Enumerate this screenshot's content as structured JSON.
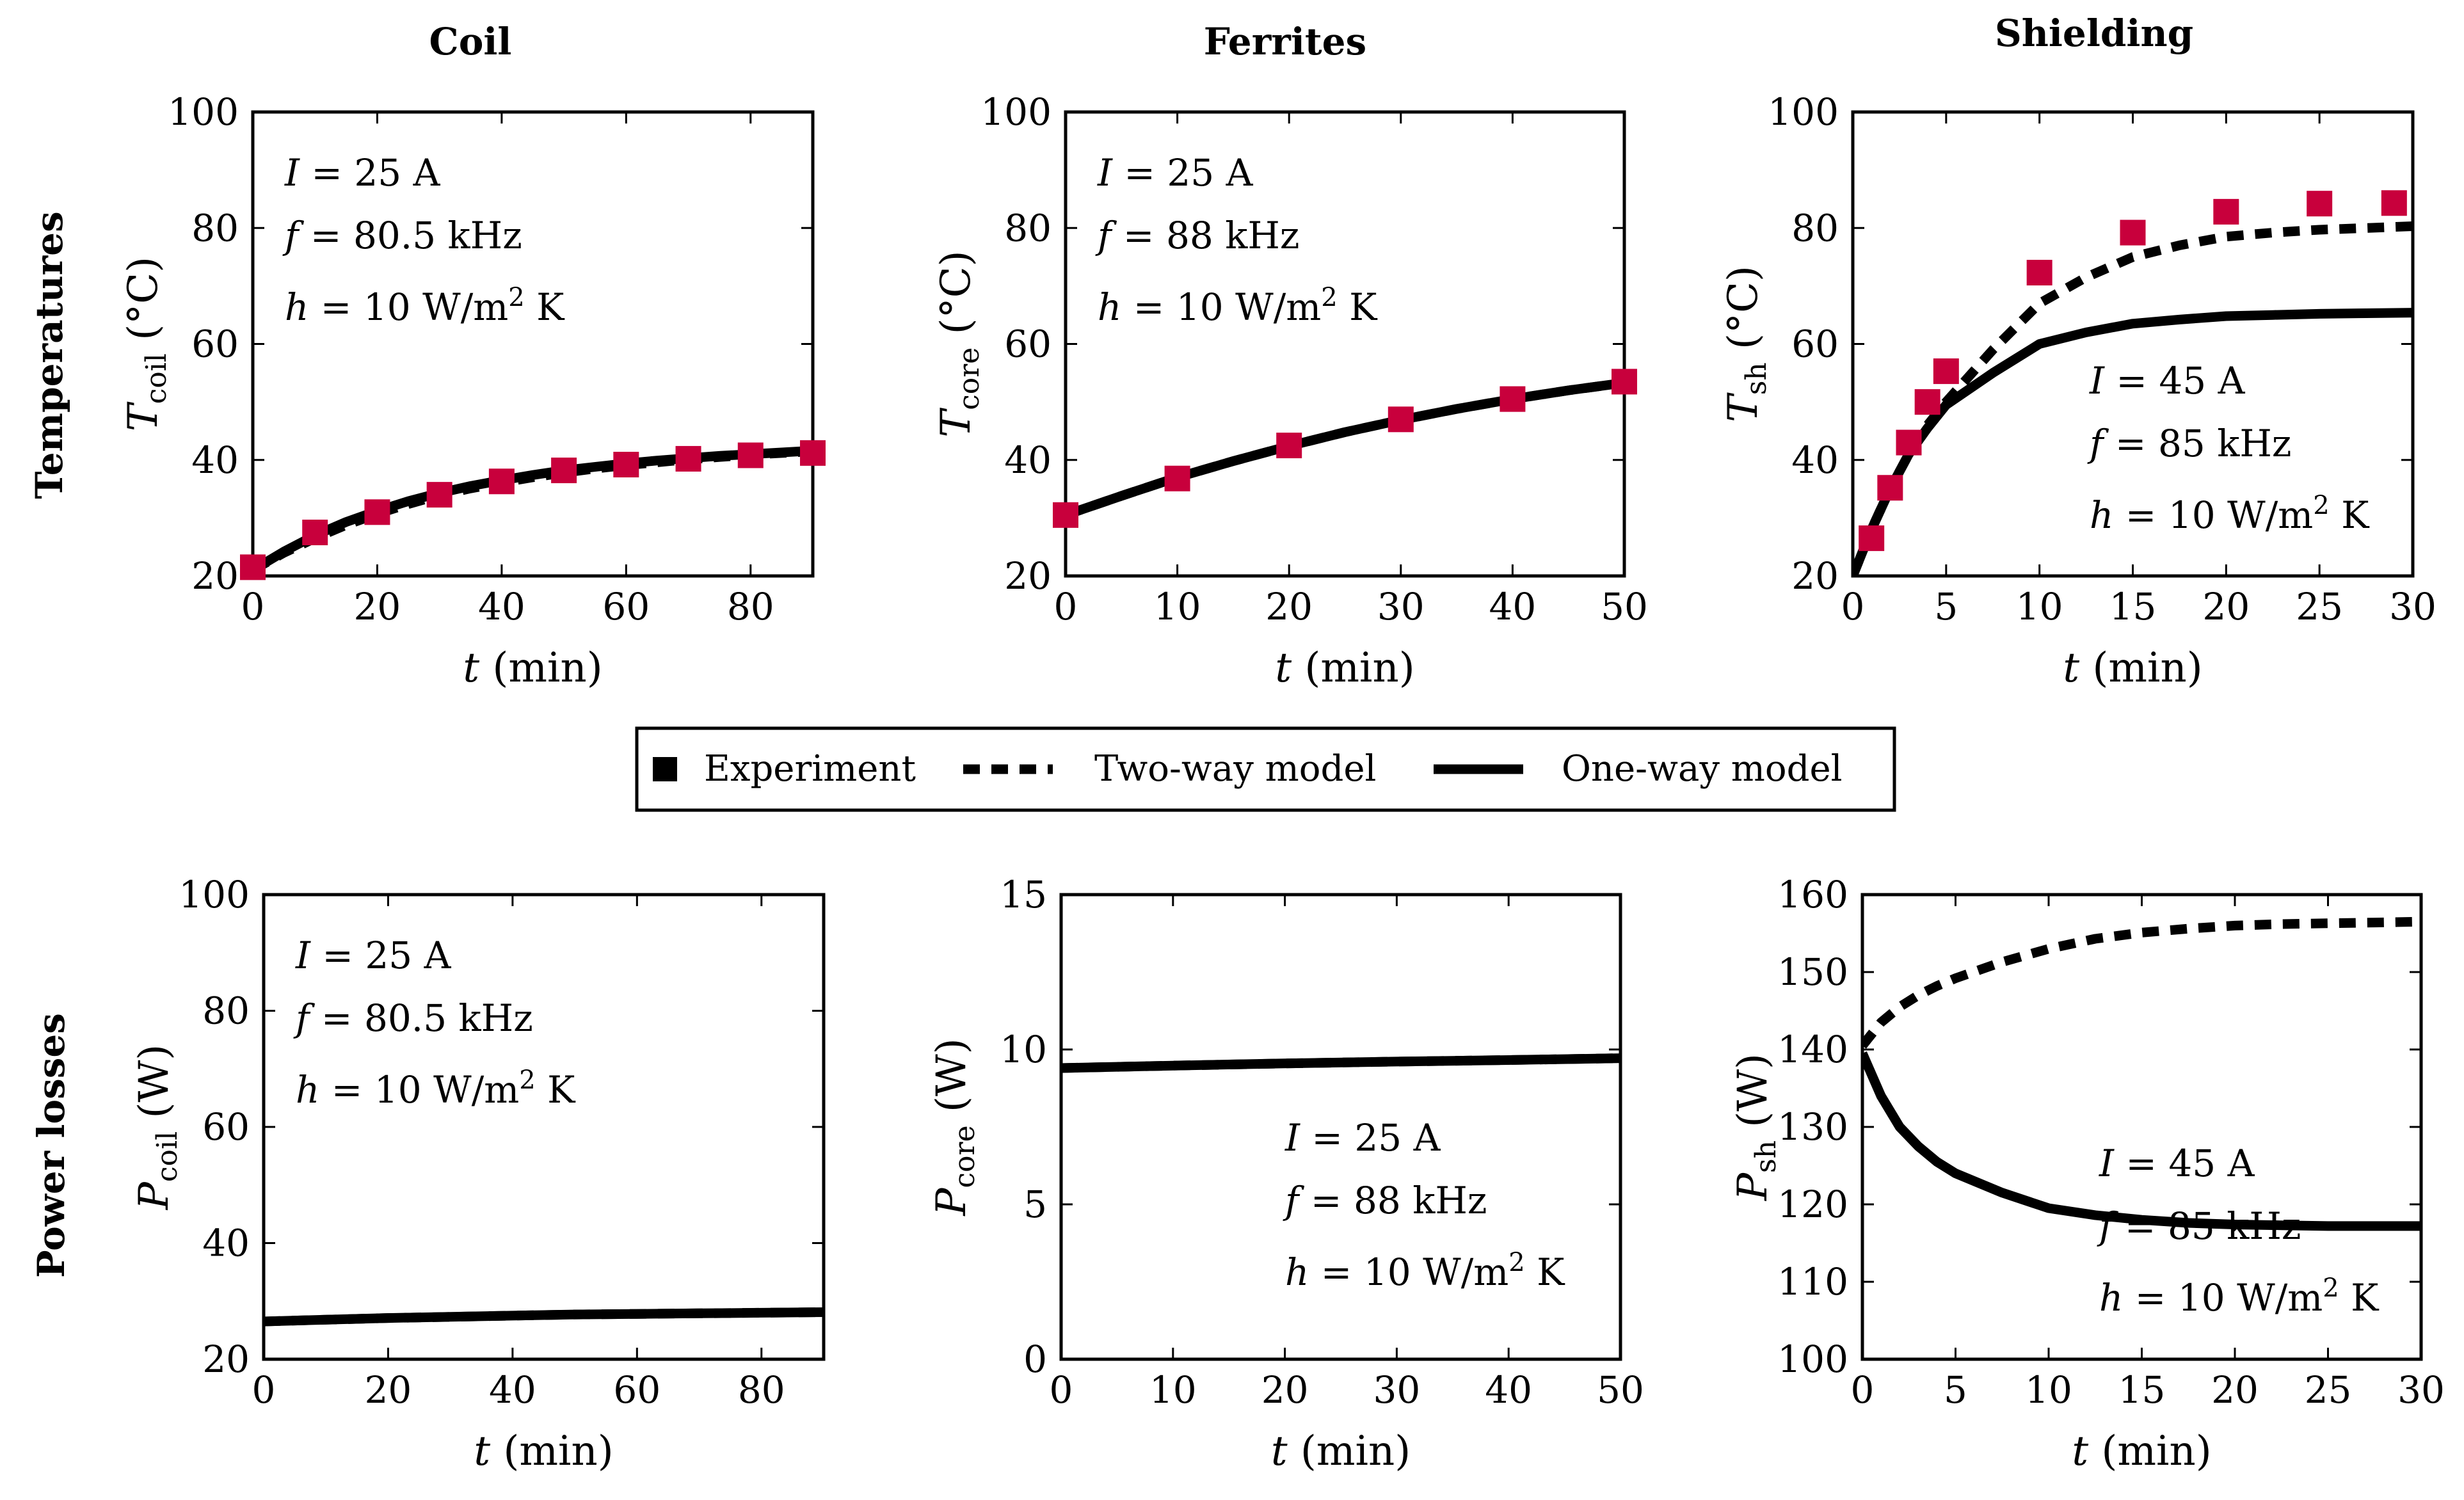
{
  "figure": {
    "column_titles": [
      "Coil",
      "Ferrites",
      "Shielding"
    ],
    "row_titles": [
      "Temperatures",
      "Power losses"
    ],
    "colors": {
      "experiment": "#c8003c",
      "model": "#000000"
    }
  },
  "legend": {
    "entries": [
      {
        "label": "Experiment",
        "style": "square-marker"
      },
      {
        "label": "Two-way model",
        "style": "dashed"
      },
      {
        "label": "One-way model",
        "style": "solid"
      }
    ]
  },
  "chart_data": [
    {
      "id": "temp-coil",
      "type": "line",
      "title": "Coil",
      "xlabel": "t (min)",
      "ylabel": "T_coil (°C)",
      "ylabel_var": "T",
      "ylabel_sub": "coil",
      "ylabel_unit": "(°C)",
      "xlim": [
        0,
        90
      ],
      "ylim": [
        20,
        100
      ],
      "xticks": [
        0,
        20,
        40,
        60,
        80
      ],
      "yticks": [
        20,
        40,
        60,
        80,
        100
      ],
      "annotations": [
        "I = 25 A",
        "f = 80.5 kHz",
        "h = 10 W/m² K"
      ],
      "annotation_position": "top-left",
      "series": [
        {
          "name": "Experiment",
          "style": "square-marker",
          "x": [
            0,
            10,
            20,
            30,
            40,
            50,
            60,
            70,
            80,
            90
          ],
          "y": [
            21.5,
            27.5,
            31,
            34,
            36.3,
            38.2,
            39.2,
            40.2,
            40.8,
            41.2
          ]
        },
        {
          "name": "Two-way model",
          "style": "dashed",
          "x": [
            0,
            5,
            10,
            15,
            20,
            25,
            30,
            35,
            40,
            45,
            50,
            55,
            60,
            65,
            70,
            75,
            80,
            85,
            90
          ],
          "y": [
            21,
            24,
            26.5,
            28.8,
            30.7,
            32.4,
            33.9,
            35.1,
            36.1,
            37,
            37.8,
            38.5,
            39.1,
            39.6,
            40.1,
            40.5,
            40.9,
            41.2,
            41.5
          ]
        },
        {
          "name": "One-way model",
          "style": "solid",
          "x": [
            0,
            5,
            10,
            15,
            20,
            25,
            30,
            35,
            40,
            45,
            50,
            55,
            60,
            65,
            70,
            75,
            80,
            85,
            90
          ],
          "y": [
            21,
            24.2,
            27,
            29.3,
            31.2,
            32.9,
            34.3,
            35.5,
            36.5,
            37.4,
            38.2,
            38.8,
            39.4,
            39.9,
            40.3,
            40.7,
            41,
            41.3,
            41.6
          ]
        }
      ]
    },
    {
      "id": "temp-core",
      "type": "line",
      "title": "Ferrites",
      "xlabel": "t (min)",
      "ylabel": "T_core (°C)",
      "ylabel_var": "T",
      "ylabel_sub": "core",
      "ylabel_unit": "(°C)",
      "xlim": [
        0,
        50
      ],
      "ylim": [
        20,
        100
      ],
      "xticks": [
        0,
        10,
        20,
        30,
        40,
        50
      ],
      "yticks": [
        20,
        40,
        60,
        80,
        100
      ],
      "annotations": [
        "I = 25 A",
        "f = 88 kHz",
        "h = 10 W/m² K"
      ],
      "annotation_position": "top-left",
      "series": [
        {
          "name": "Experiment",
          "style": "square-marker",
          "x": [
            0,
            10,
            20,
            30,
            40,
            50
          ],
          "y": [
            30.5,
            36.8,
            42.5,
            47,
            50.5,
            53.5
          ]
        },
        {
          "name": "Two-way model",
          "style": "dashed",
          "x": [
            0,
            5,
            10,
            15,
            20,
            25,
            30,
            35,
            40,
            45,
            50
          ],
          "y": [
            30.5,
            33.8,
            37,
            39.8,
            42.4,
            44.8,
            46.9,
            48.8,
            50.5,
            52,
            53.3
          ]
        },
        {
          "name": "One-way model",
          "style": "solid",
          "x": [
            0,
            5,
            10,
            15,
            20,
            25,
            30,
            35,
            40,
            45,
            50
          ],
          "y": [
            30.5,
            33.8,
            37,
            39.8,
            42.4,
            44.8,
            46.9,
            48.8,
            50.5,
            52,
            53.3
          ]
        }
      ]
    },
    {
      "id": "temp-sh",
      "type": "line",
      "title": "Shielding",
      "xlabel": "t (min)",
      "ylabel": "T_sh (°C)",
      "ylabel_var": "T",
      "ylabel_sub": "sh",
      "ylabel_unit": "(°C)",
      "xlim": [
        0,
        30
      ],
      "ylim": [
        20,
        100
      ],
      "xticks": [
        0,
        5,
        10,
        15,
        20,
        25,
        30
      ],
      "yticks": [
        20,
        40,
        60,
        80,
        100
      ],
      "annotations": [
        "I = 45 A",
        "f = 85 kHz",
        "h = 10 W/m² K"
      ],
      "annotation_position": "center-right",
      "series": [
        {
          "name": "Experiment",
          "style": "square-marker",
          "x": [
            1,
            2,
            3,
            4,
            5,
            10,
            15,
            20,
            25,
            29
          ],
          "y": [
            26.5,
            35.2,
            43,
            50,
            55.3,
            72.3,
            79.2,
            82.8,
            84.2,
            84.3
          ]
        },
        {
          "name": "Two-way model",
          "style": "dashed",
          "x": [
            0,
            1,
            2,
            3,
            4,
            5,
            7.5,
            10,
            12.5,
            15,
            17.5,
            20,
            22.5,
            25,
            27.5,
            30
          ],
          "y": [
            20,
            28,
            35,
            41,
            46,
            50,
            59,
            67,
            71.5,
            75,
            77,
            78.5,
            79.2,
            79.7,
            80,
            80.3
          ]
        },
        {
          "name": "One-way model",
          "style": "solid",
          "x": [
            0,
            1,
            2,
            3,
            4,
            5,
            7.5,
            10,
            12.5,
            15,
            17.5,
            20,
            22.5,
            25,
            27.5,
            30
          ],
          "y": [
            20,
            28,
            35,
            41,
            45.5,
            49.5,
            55,
            60,
            62,
            63.5,
            64.2,
            64.8,
            65,
            65.2,
            65.3,
            65.4
          ]
        }
      ]
    },
    {
      "id": "loss-coil",
      "type": "line",
      "title": "Coil",
      "xlabel": "t (min)",
      "ylabel": "P_coil (W)",
      "ylabel_var": "P",
      "ylabel_sub": "coil",
      "ylabel_unit": "(W)",
      "xlim": [
        0,
        90
      ],
      "ylim": [
        20,
        100
      ],
      "xticks": [
        0,
        20,
        40,
        60,
        80
      ],
      "yticks": [
        20,
        40,
        60,
        80,
        100
      ],
      "annotations": [
        "I = 25 A",
        "f = 80.5 kHz",
        "h = 10 W/m² K"
      ],
      "annotation_position": "top-left",
      "series": [
        {
          "name": "Two-way model",
          "style": "dashed",
          "x": [
            0,
            10,
            20,
            30,
            40,
            50,
            60,
            70,
            80,
            90
          ],
          "y": [
            26.5,
            26.8,
            27.1,
            27.3,
            27.5,
            27.7,
            27.8,
            27.9,
            28,
            28.1
          ]
        },
        {
          "name": "One-way model",
          "style": "solid",
          "x": [
            0,
            10,
            20,
            30,
            40,
            50,
            60,
            70,
            80,
            90
          ],
          "y": [
            26.5,
            26.8,
            27.1,
            27.3,
            27.5,
            27.7,
            27.8,
            27.9,
            28,
            28.1
          ]
        }
      ]
    },
    {
      "id": "loss-core",
      "type": "line",
      "title": "Ferrites",
      "xlabel": "t (min)",
      "ylabel": "P_core (W)",
      "ylabel_var": "P",
      "ylabel_sub": "core",
      "ylabel_unit": "(W)",
      "xlim": [
        0,
        50
      ],
      "ylim": [
        0,
        15
      ],
      "xticks": [
        0,
        10,
        20,
        30,
        40,
        50
      ],
      "yticks": [
        0,
        5,
        10,
        15
      ],
      "annotations": [
        "I = 25 A",
        "f = 88 kHz",
        "h = 10 W/m² K"
      ],
      "annotation_position": "bottom-center",
      "series": [
        {
          "name": "Two-way model",
          "style": "dashed",
          "x": [
            0,
            10,
            20,
            30,
            40,
            50
          ],
          "y": [
            9.4,
            9.48,
            9.55,
            9.61,
            9.66,
            9.72
          ]
        },
        {
          "name": "One-way model",
          "style": "solid",
          "x": [
            0,
            10,
            20,
            30,
            40,
            50
          ],
          "y": [
            9.4,
            9.48,
            9.55,
            9.61,
            9.66,
            9.72
          ]
        }
      ]
    },
    {
      "id": "loss-sh",
      "type": "line",
      "title": "Shielding",
      "xlabel": "t (min)",
      "ylabel": "P_sh (W)",
      "ylabel_var": "P",
      "ylabel_sub": "sh",
      "ylabel_unit": "(W)",
      "xlim": [
        0,
        30
      ],
      "ylim": [
        100,
        160
      ],
      "xticks": [
        0,
        5,
        10,
        15,
        20,
        25,
        30
      ],
      "yticks": [
        100,
        110,
        120,
        130,
        140,
        150,
        160
      ],
      "annotations": [
        "I = 45 A",
        "f = 85 kHz",
        "h = 10 W/m² K"
      ],
      "annotation_position": "center-right",
      "series": [
        {
          "name": "Two-way model",
          "style": "dashed",
          "x": [
            0,
            1,
            2,
            3,
            4,
            5,
            7.5,
            10,
            12.5,
            15,
            17.5,
            20,
            22.5,
            25,
            27.5,
            30
          ],
          "y": [
            140.5,
            143.5,
            145.5,
            147,
            148.2,
            149.2,
            151.3,
            153,
            154.3,
            155.1,
            155.6,
            156,
            156.2,
            156.3,
            156.4,
            156.5
          ]
        },
        {
          "name": "One-way model",
          "style": "solid",
          "x": [
            0,
            1,
            2,
            3,
            4,
            5,
            7.5,
            10,
            12.5,
            15,
            17.5,
            20,
            22.5,
            25,
            27.5,
            30
          ],
          "y": [
            139.5,
            134,
            130,
            127.5,
            125.5,
            124,
            121.5,
            119.5,
            118.6,
            118,
            117.6,
            117.4,
            117.3,
            117.2,
            117.2,
            117.2
          ]
        }
      ]
    }
  ]
}
